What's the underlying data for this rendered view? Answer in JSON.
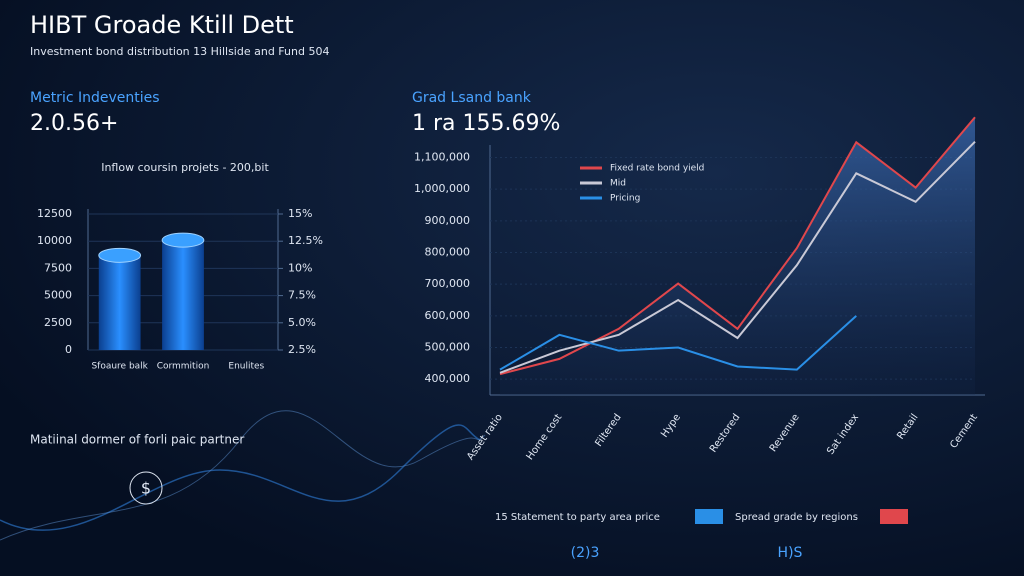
{
  "header": {
    "title": "HIBT Groade Ktill Dett",
    "subtitle": "Investment bond distribution 13 Hillside and Fund 504"
  },
  "metrics": [
    {
      "label": "Metric Indeventies",
      "value": "2.0.56+"
    },
    {
      "label": "Grad Lsand bank",
      "value": "1 ra 155.69%"
    }
  ],
  "chart_data": [
    {
      "type": "bar",
      "title": "Inflow coursin projets - 200,bit",
      "categories": [
        "Sfoaure balk",
        "Cormmition",
        "Enulites"
      ],
      "values": [
        8700,
        10100,
        null
      ],
      "color": "#1f6fd6",
      "ylim": [
        0,
        12500
      ],
      "yticks": [
        0,
        2500,
        5000,
        7500,
        10000,
        12500
      ],
      "y2lim": [
        2.5,
        15
      ],
      "y2ticks": [
        {
          "value": 2.5,
          "label": "2.5%"
        },
        {
          "value": 5,
          "label": "5.0%"
        },
        {
          "value": 7.5,
          "label": "7.5%"
        },
        {
          "value": 10,
          "label": "10%"
        },
        {
          "value": 12.5,
          "label": "12.5%"
        },
        {
          "value": 15,
          "label": "15%"
        }
      ],
      "grid": true
    },
    {
      "type": "line",
      "categories": [
        "Asset ratio",
        "Home cost",
        "Filtered",
        "Hype",
        "Restored",
        "Revenue",
        "Sat index",
        "Retail",
        "Cement"
      ],
      "series": [
        {
          "name": "Fixed rate bond yield",
          "color": "#e0474c",
          "values": [
            416000,
            464000,
            559000,
            702000,
            559000,
            814000,
            1148000,
            1005000,
            1227000
          ]
        },
        {
          "name": "Mid",
          "color": "#c9c9d6",
          "values": [
            420000,
            490000,
            540000,
            650000,
            530000,
            760000,
            1050000,
            960000,
            1150000
          ]
        },
        {
          "name": "Pricing",
          "color": "#2a8fe6",
          "values": [
            430000,
            540000,
            490000,
            500000,
            440000,
            430000,
            600000,
            null,
            null
          ]
        }
      ],
      "ylim": [
        350000,
        1250000
      ],
      "yticks": [
        {
          "value": 400000,
          "label": "400,000"
        },
        {
          "value": 500000,
          "label": "500,000"
        },
        {
          "value": 600000,
          "label": "600,000"
        },
        {
          "value": 700000,
          "label": "700,000"
        },
        {
          "value": 800000,
          "label": "800,000"
        },
        {
          "value": 900000,
          "label": "900,000"
        },
        {
          "value": 1000000,
          "label": "1,000,000"
        },
        {
          "value": 1100000,
          "label": "1,100,000"
        }
      ],
      "grid": true
    }
  ],
  "bottom": {
    "caption": "Matiinal dormer of forli paic partner",
    "legend": [
      "15 Statement to party area price",
      "Spread grade by regions"
    ],
    "badges": [
      "(2)3",
      "H)S"
    ]
  }
}
